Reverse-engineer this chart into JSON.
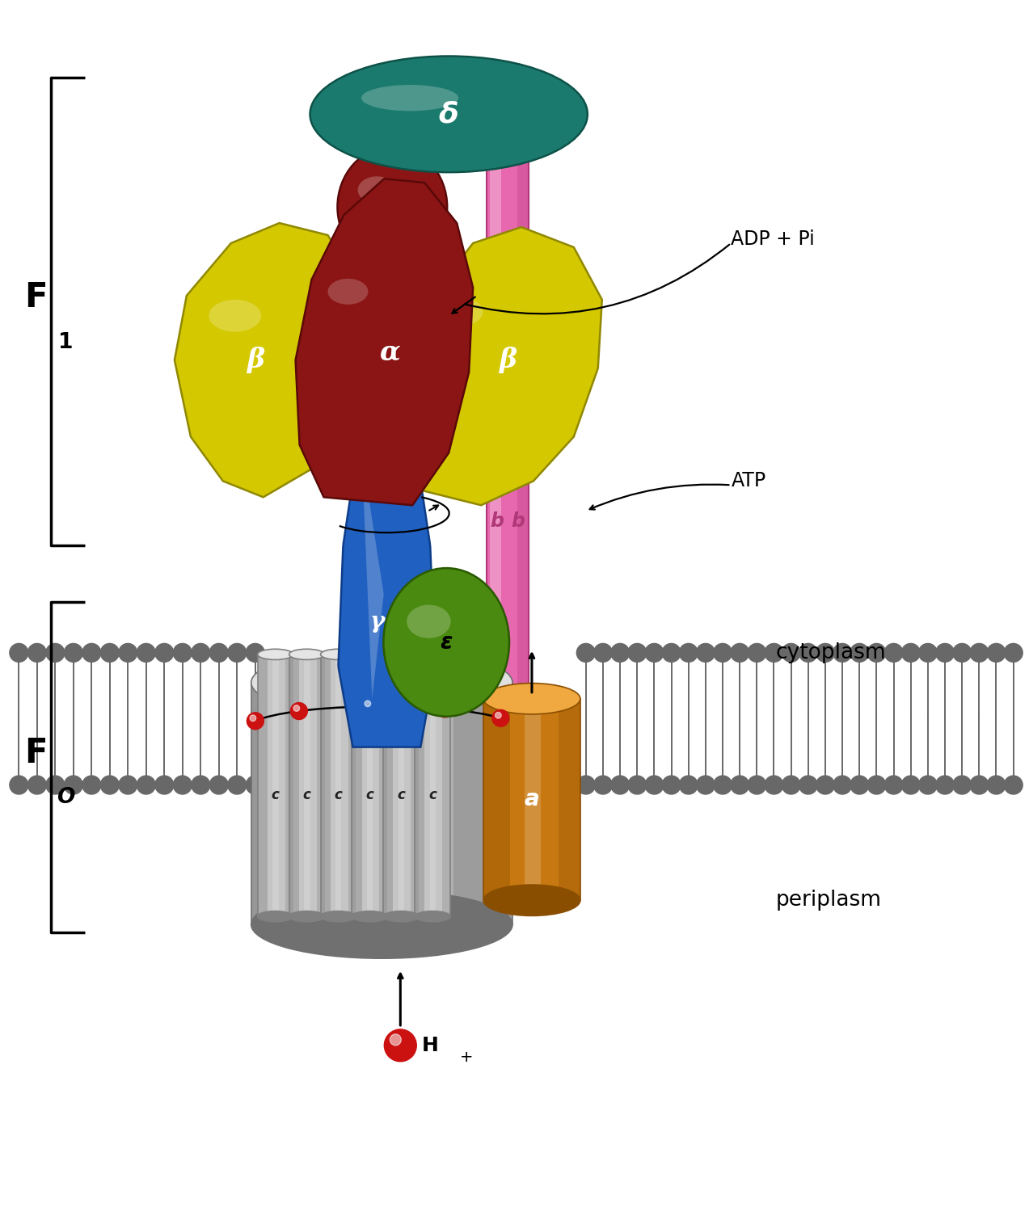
{
  "background": "#ffffff",
  "fig_width": 12.73,
  "fig_height": 15.0,
  "colors": {
    "delta": "#1b7a6e",
    "delta_dark": "#0d5248",
    "delta_light": "#2aaa98",
    "alpha": "#8b1515",
    "alpha_dark": "#5a0808",
    "alpha_light": "#bb3333",
    "beta": "#d4c800",
    "beta_dark": "#908800",
    "beta_light": "#f0e040",
    "gamma": "#2060c0",
    "gamma_dark": "#0d3d8a",
    "gamma_light": "#4a90e0",
    "epsilon": "#4a8a10",
    "epsilon_dark": "#2a5a00",
    "epsilon_light": "#70b830",
    "b_rod": "#e868b0",
    "b_rod_dark": "#b03878",
    "b_rod_light": "#f8a0d0",
    "a_sub": "#c87810",
    "a_sub_dark": "#8a4e00",
    "a_sub_light": "#f0a840",
    "c_cyl": "#b0b0b0",
    "c_cyl_dark": "#707070",
    "c_cyl_light": "#e0e0e0",
    "membrane": "#686868",
    "h_red": "#cc1111"
  },
  "greek": {
    "delta": "δ",
    "alpha": "α",
    "beta": "β",
    "gamma": "γ",
    "epsilon": "ε"
  }
}
